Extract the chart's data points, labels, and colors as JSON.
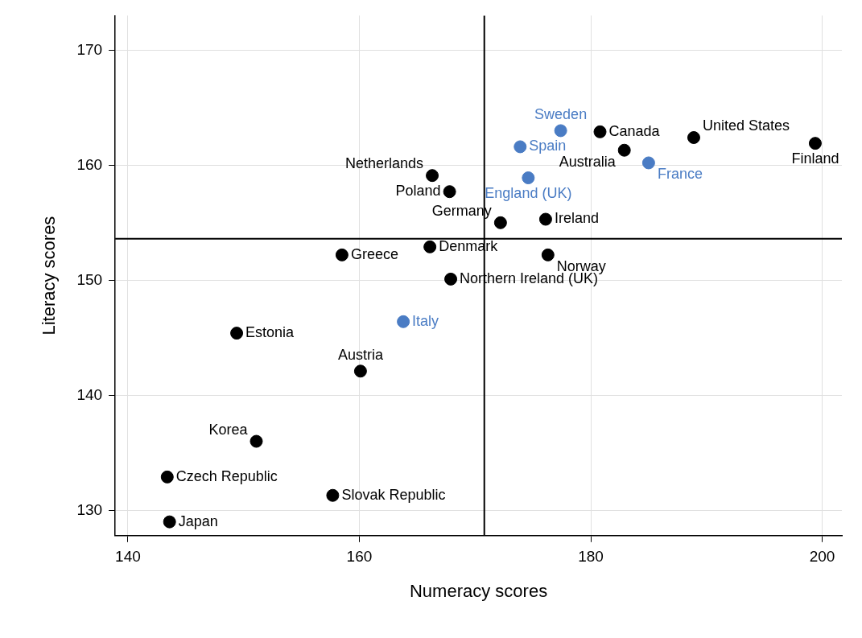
{
  "chart_data": {
    "type": "scatter",
    "xlabel": "Numeracy scores",
    "ylabel": "Literacy scores",
    "xlim": [
      138.9,
      201.7
    ],
    "ylim": [
      127.8,
      173
    ],
    "xticks": [
      140,
      160,
      180,
      200
    ],
    "yticks": [
      130,
      140,
      150,
      160,
      170
    ],
    "grid": true,
    "legend": false,
    "marker": "circle",
    "series": [
      {
        "color": "#000000",
        "x": [
          180.8,
          188.9,
          199.4,
          182.9,
          166.3,
          167.8,
          172.2,
          176.1,
          166.1,
          158.5,
          176.3,
          167.9,
          149.4,
          160.1,
          151.1,
          143.4,
          157.7,
          143.6
        ],
        "values": [
          162.9,
          162.4,
          161.9,
          161.3,
          159.1,
          157.7,
          155.0,
          155.3,
          152.9,
          152.2,
          152.2,
          150.1,
          145.4,
          142.1,
          136.0,
          132.9,
          131.3,
          129.0
        ]
      },
      {
        "color": "#4a7cc4",
        "x": [
          177.4,
          173.9,
          185.0,
          174.6,
          163.8
        ],
        "values": [
          163.0,
          161.6,
          160.2,
          158.9,
          146.4
        ]
      }
    ],
    "ref_lines": [
      {
        "axis": "x",
        "value": 170.8,
        "color": "#000000"
      },
      {
        "axis": "y",
        "value": 153.6,
        "color": "#000000"
      }
    ],
    "annotations": [
      {
        "text": "Sweden",
        "x": 177.4,
        "y": 163.0
      },
      {
        "text": "Canada",
        "x": 180.8,
        "y": 162.9
      },
      {
        "text": "United States",
        "x": 188.9,
        "y": 162.4
      },
      {
        "text": "Finland",
        "x": 199.4,
        "y": 161.9
      },
      {
        "text": "Spain",
        "x": 173.9,
        "y": 161.6
      },
      {
        "text": "Australia",
        "x": 182.9,
        "y": 161.3
      },
      {
        "text": "France",
        "x": 185.0,
        "y": 160.2
      },
      {
        "text": "Netherlands",
        "x": 166.3,
        "y": 159.1
      },
      {
        "text": "England (UK)",
        "x": 174.6,
        "y": 158.9
      },
      {
        "text": "Poland",
        "x": 167.8,
        "y": 157.7
      },
      {
        "text": "Germany",
        "x": 172.2,
        "y": 155.0
      },
      {
        "text": "Ireland",
        "x": 176.1,
        "y": 155.3
      },
      {
        "text": "Denmark",
        "x": 166.1,
        "y": 152.9
      },
      {
        "text": "Greece",
        "x": 158.5,
        "y": 152.2
      },
      {
        "text": "Norway",
        "x": 176.3,
        "y": 152.2
      },
      {
        "text": "Northern Ireland (UK)",
        "x": 167.9,
        "y": 150.1
      },
      {
        "text": "Italy",
        "x": 163.8,
        "y": 146.4
      },
      {
        "text": "Estonia",
        "x": 149.4,
        "y": 145.4
      },
      {
        "text": "Austria",
        "x": 160.1,
        "y": 142.1
      },
      {
        "text": "Korea",
        "x": 151.1,
        "y": 136.0
      },
      {
        "text": "Czech Republic",
        "x": 143.4,
        "y": 132.9
      },
      {
        "text": "Slovak Republic",
        "x": 157.7,
        "y": 131.3
      },
      {
        "text": "Japan",
        "x": 143.6,
        "y": 129.0
      }
    ]
  }
}
